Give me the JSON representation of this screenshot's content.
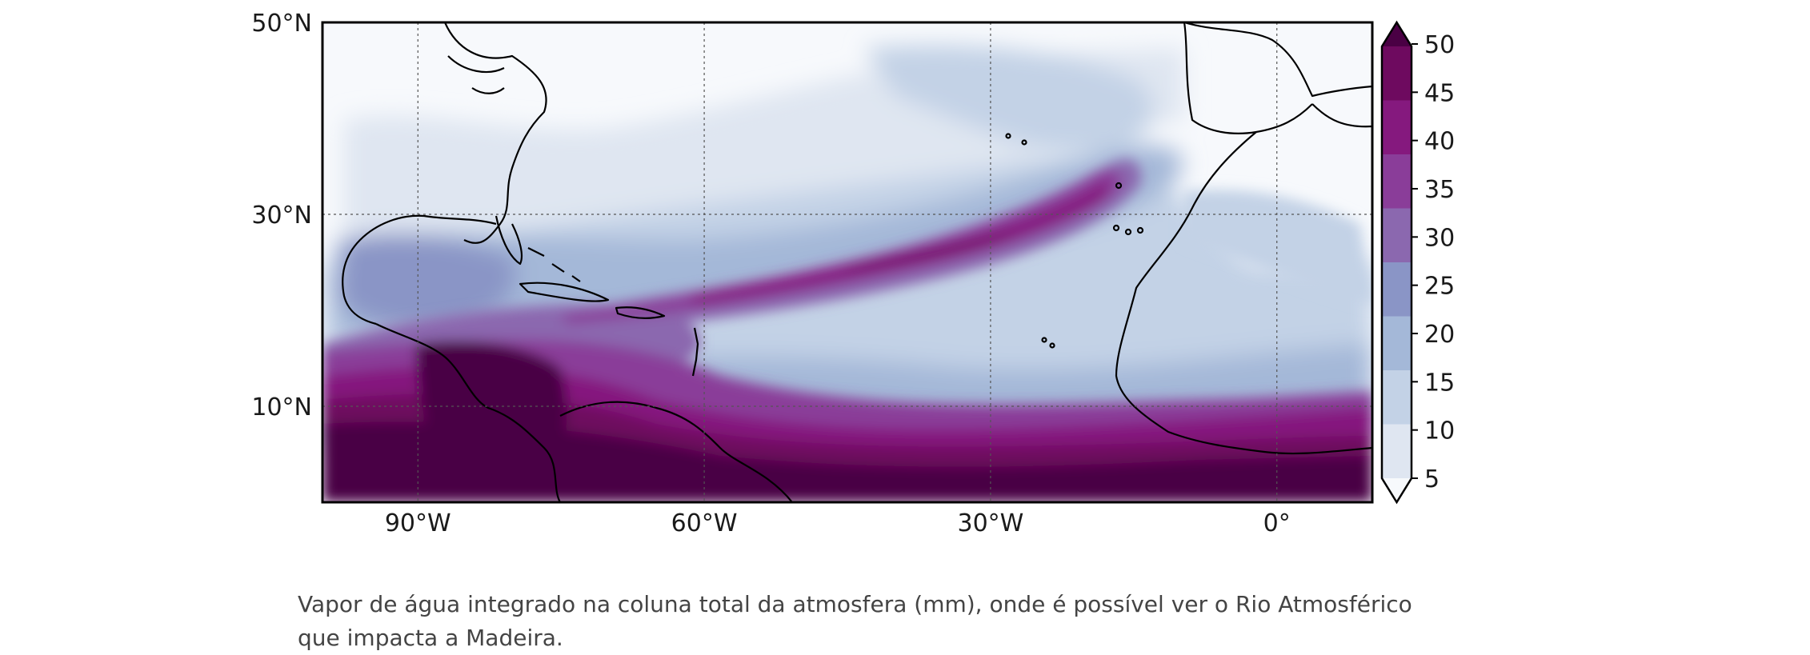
{
  "map": {
    "lat_ticks": [
      {
        "value": 50,
        "label": "50°N"
      },
      {
        "value": 30,
        "label": "30°N"
      },
      {
        "value": 10,
        "label": "10°N"
      }
    ],
    "lon_ticks": [
      {
        "value": -90,
        "label": "90°W"
      },
      {
        "value": -60,
        "label": "60°W"
      },
      {
        "value": -30,
        "label": "30°W"
      },
      {
        "value": 0,
        "label": "0°"
      }
    ],
    "extent": {
      "lon_min": -100,
      "lon_max": 10,
      "lat_min": 0,
      "lat_max": 50
    },
    "gridlines": true,
    "grid_lons": [
      -90,
      -60,
      -30,
      0
    ],
    "grid_lats": [
      10,
      30
    ],
    "colorbar": {
      "ticks": [
        "50",
        "45",
        "40",
        "35",
        "30",
        "25",
        "20",
        "15",
        "10",
        "5"
      ],
      "levels": [
        5,
        10,
        15,
        20,
        25,
        30,
        35,
        40,
        45,
        50
      ],
      "colors": [
        "#f7f9fc",
        "#dfe6f1",
        "#c3d2e6",
        "#a4b8d8",
        "#8a95c6",
        "#8b68af",
        "#8a3d99",
        "#85197e",
        "#6e0a5f",
        "#4a0044"
      ],
      "extend": "both"
    },
    "colors": {
      "coast": "#000000",
      "frame": "#000000",
      "grid": "#555555"
    }
  },
  "caption": {
    "text": "Vapor de água integrado na coluna total da atmosfera (mm), onde é possível ver o Rio Atmosférico que impacta a Madeira."
  }
}
